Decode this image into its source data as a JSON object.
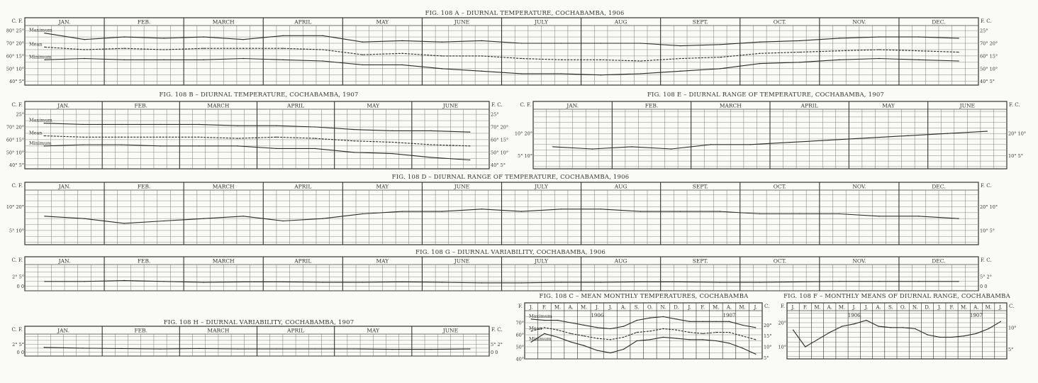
{
  "chart_data": [
    {
      "id": "A",
      "type": "line",
      "title": "FIG. 108 A – DIURNAL TEMPERATURE, COCHABAMBA, 1906",
      "months": [
        "JAN.",
        "FEB.",
        "MARCH",
        "APRIL",
        "MAY",
        "JUNE",
        "JULY",
        "AUG",
        "SEPT.",
        "OCT.",
        "NOV.",
        "DEC."
      ],
      "left_unit": "C. F.",
      "right_unit": "F. C.",
      "left_ticks": [
        {
          "f": 80,
          "label": "80° 25°"
        },
        {
          "f": 70,
          "label": "70° 20°"
        },
        {
          "f": 60,
          "label": "60° 15°"
        },
        {
          "f": 50,
          "label": "50° 10°"
        },
        {
          "f": 40,
          "label": "40° 5°"
        }
      ],
      "right_ticks": [
        {
          "f": 80,
          "label": "25°"
        },
        {
          "f": 70,
          "label": "70° 20°"
        },
        {
          "f": 60,
          "label": "60° 15°"
        },
        {
          "f": 50,
          "label": "50° 10°"
        },
        {
          "f": 40,
          "label": "40° 5°"
        }
      ],
      "ylim": [
        37,
        84
      ],
      "grid_step": 5,
      "series": [
        {
          "name": "Maximum",
          "values": [
            78,
            73,
            75,
            74,
            75,
            73,
            76,
            76,
            71,
            72,
            71,
            72,
            70,
            70,
            70,
            70,
            68,
            69,
            71,
            72,
            74,
            75,
            75,
            74
          ]
        },
        {
          "name": "Mean",
          "values": [
            67,
            65,
            66,
            65,
            66,
            66,
            66,
            65,
            61,
            62,
            60,
            60,
            58,
            57,
            57,
            56,
            58,
            59,
            62,
            63,
            64,
            65,
            64,
            63
          ]
        },
        {
          "name": "Minimum",
          "values": [
            57,
            58,
            57,
            57,
            57,
            58,
            57,
            56,
            53,
            53,
            50,
            48,
            46,
            46,
            45,
            46,
            48,
            50,
            54,
            55,
            57,
            58,
            57,
            56
          ]
        }
      ]
    },
    {
      "id": "B",
      "type": "line",
      "title": "FIG. 108 B – DIURNAL TEMPERATURE, COCHABAMBA, 1907",
      "months": [
        "JAN.",
        "FEB.",
        "MARCH",
        "APRIL",
        "MAY",
        "JUNE"
      ],
      "left_unit": "C. F.",
      "right_unit": "F. C.",
      "left_ticks": [
        {
          "f": 80,
          "label": "25°"
        },
        {
          "f": 70,
          "label": "70° 20°"
        },
        {
          "f": 60,
          "label": "60° 15°"
        },
        {
          "f": 50,
          "label": "50° 10°"
        },
        {
          "f": 40,
          "label": "40° 5°"
        }
      ],
      "right_ticks": [
        {
          "f": 80,
          "label": "25°"
        },
        {
          "f": 70,
          "label": "70° 20°"
        },
        {
          "f": 60,
          "label": "60° 15°"
        },
        {
          "f": 50,
          "label": "50° 10°"
        },
        {
          "f": 40,
          "label": "40° 5°"
        }
      ],
      "ylim": [
        37,
        84
      ],
      "grid_step": 5,
      "series": [
        {
          "name": "Maximum",
          "values": [
            73,
            72,
            72,
            72,
            72,
            71,
            71,
            70,
            68,
            67,
            67,
            66
          ]
        },
        {
          "name": "Mean",
          "values": [
            63,
            62,
            62,
            62,
            62,
            61,
            62,
            61,
            59,
            58,
            56,
            55
          ]
        },
        {
          "name": "Minimum",
          "values": [
            55,
            56,
            56,
            55,
            55,
            55,
            53,
            53,
            50,
            49,
            46,
            44
          ]
        }
      ]
    },
    {
      "id": "E",
      "type": "line",
      "title": "FIG. 108 E – DIURNAL RANGE OF TEMPERATURE, COCHABAMBA, 1907",
      "months": [
        "JAN.",
        "FEB.",
        "MARCH",
        "APRIL",
        "MAY",
        "JUNE"
      ],
      "left_unit": "C. F.",
      "right_unit": "F. C.",
      "left_ticks": [
        {
          "f": 20,
          "label": "10° 20°"
        },
        {
          "f": 10,
          "label": "5° 10°"
        }
      ],
      "right_ticks": [
        {
          "f": 20,
          "label": "20° 10°"
        },
        {
          "f": 10,
          "label": "10° 5°"
        }
      ],
      "ylim": [
        4,
        31
      ],
      "grid_step": 2.5,
      "series": [
        {
          "values": [
            14,
            13,
            14,
            13,
            15,
            15,
            16,
            17,
            18,
            19,
            20,
            21
          ]
        }
      ]
    },
    {
      "id": "D",
      "type": "line",
      "title": "FIG. 108 D – DIURNAL RANGE OF TEMPERATURE, COCHABAMBA, 1906",
      "months": [
        "JAN.",
        "FEB.",
        "MARCH",
        "APRIL",
        "MAY",
        "JUNE",
        "JULY",
        "AUG",
        "SEPT.",
        "OCT.",
        "NOV.",
        "DEC."
      ],
      "left_unit": "C. F.",
      "right_unit": "F. C.",
      "left_ticks": [
        {
          "f": 20,
          "label": "10° 20°"
        },
        {
          "f": 10,
          "label": "5° 10°"
        }
      ],
      "right_ticks": [
        {
          "f": 20,
          "label": "20° 10°"
        },
        {
          "f": 10,
          "label": "10° 5°"
        }
      ],
      "ylim": [
        4,
        27
      ],
      "grid_step": 2.5,
      "series": [
        {
          "values": [
            16,
            15,
            13,
            14,
            15,
            16,
            14,
            15,
            17,
            18,
            18,
            19,
            18,
            19,
            19,
            18,
            18,
            18,
            17,
            17,
            17,
            16,
            16,
            15
          ]
        }
      ]
    },
    {
      "id": "G",
      "type": "line",
      "title": "FIG. 108 G – DIURNAL VARIABILITY, COCHABAMBA, 1906",
      "months": [
        "JAN.",
        "FEB.",
        "MARCH",
        "APRIL",
        "MAY",
        "JUNE",
        "JULY",
        "AUG",
        "SEPT.",
        "OCT.",
        "NOV.",
        "DEC."
      ],
      "left_unit": "C. F.",
      "right_unit": "F. C.",
      "left_ticks": [
        {
          "f": 2,
          "label": "2° 5°"
        },
        {
          "f": 0,
          "label": "0 0"
        }
      ],
      "right_ticks": [
        {
          "f": 2,
          "label": "5° 2°"
        },
        {
          "f": 0,
          "label": "0 0"
        }
      ],
      "ylim": [
        -1,
        4.6
      ],
      "grid_step": 1,
      "series": [
        {
          "values": [
            1,
            1,
            1.2,
            1,
            0.8,
            0.9,
            0.9,
            0.8,
            0.8,
            0.9,
            0.8,
            0.7,
            0.7,
            0.8,
            0.8,
            0.9,
            0.9,
            0.8,
            0.8,
            0.9,
            1,
            1,
            1,
            1
          ]
        }
      ]
    },
    {
      "id": "H",
      "type": "line",
      "title": "FIG. 108 H – DIURNAL VARIABILITY, COCHABAMBA, 1907",
      "months": [
        "JAN.",
        "FEB.",
        "MARCH",
        "APRIL",
        "MAY",
        "JUNE"
      ],
      "left_unit": "C. F.",
      "right_unit": "F. C.",
      "left_ticks": [
        {
          "f": 2,
          "label": "2° 5°"
        },
        {
          "f": 0,
          "label": "0 0"
        }
      ],
      "right_ticks": [
        {
          "f": 2,
          "label": "5° 2°"
        },
        {
          "f": 0,
          "label": "0 0"
        }
      ],
      "ylim": [
        -1,
        4.6
      ],
      "grid_step": 1,
      "series": [
        {
          "values": [
            1.2,
            1,
            0.9,
            0.8,
            0.9,
            0.8,
            0.8,
            0.8,
            0.8,
            0.7,
            0.7,
            0.8
          ]
        }
      ]
    },
    {
      "id": "C",
      "type": "line",
      "title": "FIG. 108 C – MEAN MONTHLY TEMPERATURES, COCHABAMBA",
      "months": [
        "J.",
        "F.",
        "M.",
        "A.",
        "M.",
        "J.",
        "J.",
        "A.",
        "S.",
        "O.",
        "N.",
        "D.",
        "J.",
        "F.",
        "M.",
        "A.",
        "M.",
        "J."
      ],
      "years": [
        "1906",
        "1907"
      ],
      "left_unit": "F.",
      "right_unit": "C.",
      "left_ticks": [
        {
          "f": 70,
          "label": "70°"
        },
        {
          "f": 60,
          "label": "60°"
        },
        {
          "f": 50,
          "label": "50°"
        },
        {
          "f": 40,
          "label": "40°"
        }
      ],
      "right_ticks": [
        {
          "f": 68,
          "label": "20°"
        },
        {
          "f": 59,
          "label": "15°"
        },
        {
          "f": 50,
          "label": "10°"
        },
        {
          "f": 41,
          "label": "5°"
        }
      ],
      "ylim": [
        40,
        80
      ],
      "grid_step": 5,
      "series": [
        {
          "name": "Maximum",
          "values": [
            73,
            72,
            72,
            70,
            68,
            66,
            65,
            67,
            72,
            74,
            75,
            73,
            71,
            71,
            71,
            71,
            68,
            66
          ]
        },
        {
          "name": "Mean",
          "values": [
            63,
            66,
            64,
            61,
            59,
            57,
            56,
            58,
            62,
            63,
            65,
            64,
            62,
            61,
            62,
            62,
            59,
            56
          ]
        },
        {
          "name": "Minimum",
          "values": [
            54,
            61,
            58,
            54,
            51,
            47,
            45,
            48,
            55,
            56,
            58,
            57,
            56,
            56,
            55,
            53,
            49,
            44
          ]
        }
      ]
    },
    {
      "id": "F",
      "type": "line",
      "title": "FIG. 108 F – MONTHLY MEANS OF DIURNAL RANGE, COCHABAMBA",
      "months": [
        "J.",
        "F.",
        "M.",
        "A.",
        "M.",
        "J.",
        "J.",
        "A.",
        "S.",
        "O.",
        "N.",
        "D.",
        "J.",
        "F.",
        "M.",
        "A.",
        "M.",
        "J."
      ],
      "years": [
        "1906",
        "1907"
      ],
      "left_unit": "F.",
      "right_unit": "C.",
      "left_ticks": [
        {
          "f": 20,
          "label": "20°"
        },
        {
          "f": 10,
          "label": "10°"
        }
      ],
      "right_ticks": [
        {
          "f": 18,
          "label": "10°"
        },
        {
          "f": 9,
          "label": "5°"
        }
      ],
      "ylim": [
        5,
        25
      ],
      "grid_step": 2,
      "series": [
        {
          "values": [
            17,
            10,
            13,
            16,
            18.5,
            19.5,
            21,
            18.5,
            18,
            18,
            17.5,
            15,
            14,
            14,
            14.5,
            15.5,
            17.5,
            20.5
          ]
        }
      ]
    }
  ]
}
